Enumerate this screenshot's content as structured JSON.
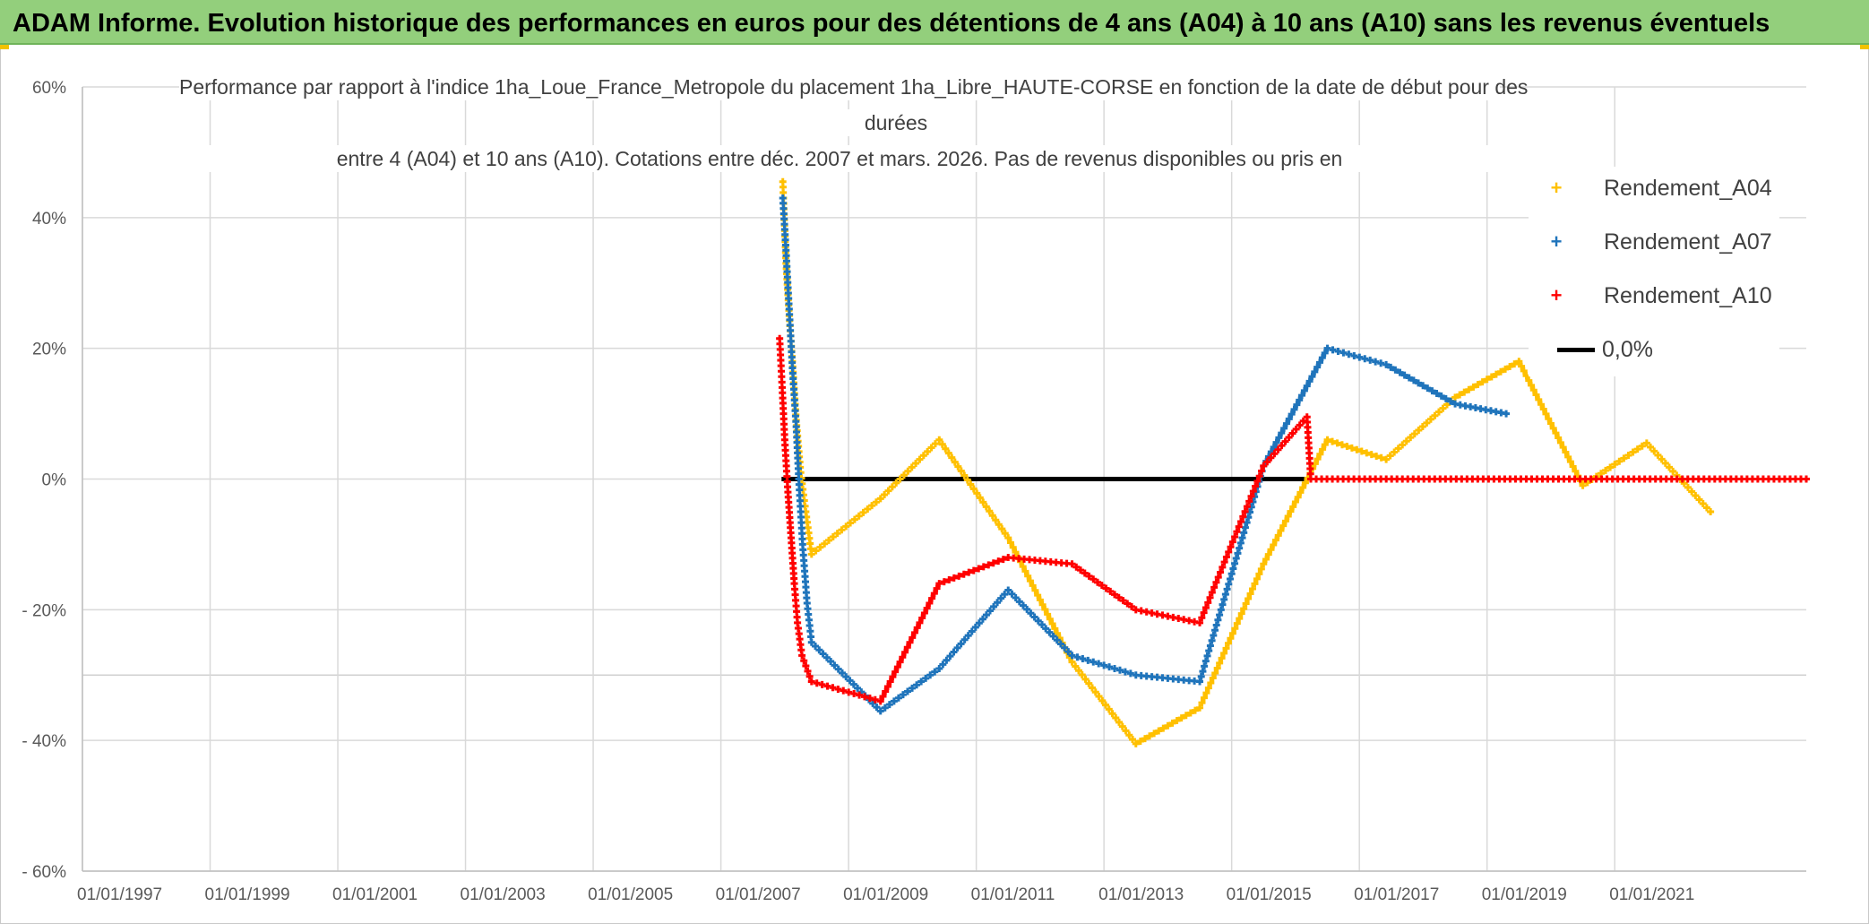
{
  "header": {
    "title": "ADAM Informe. Evolution historique des performances en euros pour des détentions de 4 ans (A04) à 10 ans (A10) sans les revenus éventuels"
  },
  "colors": {
    "header_bg": "#93cf7c",
    "a04": "#ffc000",
    "a07": "#1f74bb",
    "a10": "#ff0000",
    "zero": "#000000"
  },
  "chart_data": {
    "type": "line",
    "title_lines": [
      "Performance par rapport à l'indice 1ha_Loue_France_Metropole  du placement 1ha_Libre_HAUTE-CORSE en fonction de la date de début pour des",
      "durées",
      "entre 4 (A04) et 10 ans (A10). Cotations entre déc. 2007 et mars. 2026. Pas de revenus disponibles ou pris en"
    ],
    "xlim": [
      1997.0,
      2024.0
    ],
    "ylim": [
      -60,
      60
    ],
    "y_ticks": [
      60,
      40,
      20,
      0,
      -20,
      -40,
      -60
    ],
    "y_tick_labels": [
      "60%",
      "40%",
      "20%",
      "0%",
      "- 20%",
      "- 40%",
      "- 60%"
    ],
    "x_ticks": [
      1997,
      1999,
      2001,
      2003,
      2005,
      2007,
      2009,
      2011,
      2013,
      2015,
      2017,
      2019,
      2021
    ],
    "x_tick_labels": [
      "01/01/1997",
      "01/01/1999",
      "01/01/2001",
      "01/01/2003",
      "01/01/2005",
      "01/01/2007",
      "01/01/2009",
      "01/01/2011",
      "01/01/2013",
      "01/01/2015",
      "01/01/2017",
      "01/01/2019",
      "01/01/2021"
    ],
    "legend_position": "top-right",
    "series": [
      {
        "name": "Rendement_A04",
        "key": "a04",
        "points": [
          [
            2007.97,
            45.5
          ],
          [
            2008.02,
            33
          ],
          [
            2008.07,
            25
          ],
          [
            2008.12,
            18
          ],
          [
            2008.18,
            9
          ],
          [
            2008.25,
            1
          ],
          [
            2008.33,
            -5
          ],
          [
            2008.42,
            -11.5
          ],
          [
            2009.5,
            -3
          ],
          [
            2010.42,
            6
          ],
          [
            2011.5,
            -9
          ],
          [
            2012.5,
            -28
          ],
          [
            2013.5,
            -40.5
          ],
          [
            2014.5,
            -35
          ],
          [
            2015.5,
            -13
          ],
          [
            2016.5,
            6
          ],
          [
            2017.42,
            3
          ],
          [
            2018.5,
            12.5
          ],
          [
            2019.5,
            18
          ],
          [
            2020.5,
            -1
          ],
          [
            2021.5,
            5.5
          ],
          [
            2022.5,
            -5
          ]
        ]
      },
      {
        "name": "Rendement_A07",
        "key": "a07",
        "points": [
          [
            2007.97,
            43
          ],
          [
            2008.02,
            35
          ],
          [
            2008.07,
            26
          ],
          [
            2008.12,
            17
          ],
          [
            2008.18,
            8
          ],
          [
            2008.22,
            0
          ],
          [
            2008.28,
            -10
          ],
          [
            2008.35,
            -19
          ],
          [
            2008.42,
            -25
          ],
          [
            2009.5,
            -35.5
          ],
          [
            2010.42,
            -29
          ],
          [
            2011.5,
            -17
          ],
          [
            2012.5,
            -27
          ],
          [
            2013.5,
            -30
          ],
          [
            2014.5,
            -31
          ],
          [
            2015.5,
            2
          ],
          [
            2016.5,
            20
          ],
          [
            2017.42,
            17.5
          ],
          [
            2018.5,
            11.5
          ],
          [
            2019.3,
            10
          ]
        ]
      },
      {
        "name": "Rendement_A10",
        "key": "a10",
        "points": [
          [
            2007.92,
            21.5
          ],
          [
            2007.96,
            14
          ],
          [
            2008.0,
            6
          ],
          [
            2008.05,
            -2
          ],
          [
            2008.1,
            -9
          ],
          [
            2008.15,
            -16
          ],
          [
            2008.2,
            -22
          ],
          [
            2008.27,
            -27
          ],
          [
            2008.42,
            -31
          ],
          [
            2009.5,
            -34
          ],
          [
            2010.42,
            -16
          ],
          [
            2011.5,
            -12
          ],
          [
            2012.5,
            -13
          ],
          [
            2013.5,
            -20
          ],
          [
            2014.5,
            -22
          ],
          [
            2015.5,
            2
          ],
          [
            2016.18,
            9.5
          ],
          [
            2016.24,
            0
          ],
          [
            2024.0,
            0
          ]
        ]
      },
      {
        "name": "0,0%",
        "key": "zero",
        "points": [
          [
            2007.95,
            0
          ],
          [
            2016.2,
            0
          ]
        ]
      }
    ]
  }
}
